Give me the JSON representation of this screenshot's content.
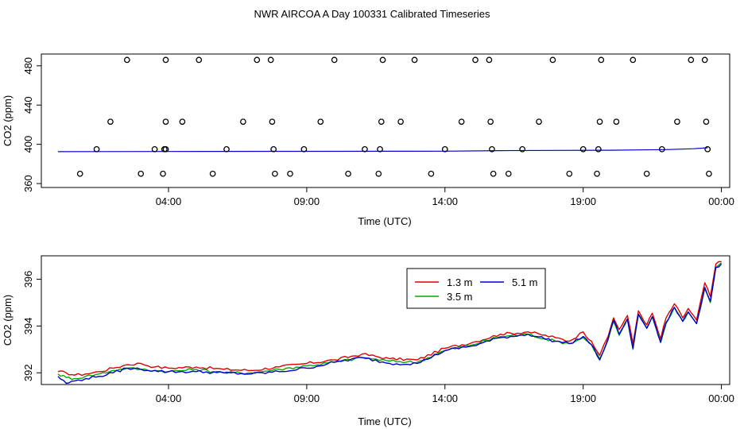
{
  "title": "NWR AIRCOA A  Day 100331  Calibrated Timeseries",
  "chart_data": [
    {
      "type": "scatter",
      "xlabel": "Time (UTC)",
      "ylabel": "CO2 (ppm)",
      "x_ticks": [
        "04:00",
        "09:00",
        "14:00",
        "19:00",
        "00:00"
      ],
      "x_tick_hours": [
        4,
        9,
        14,
        19,
        24
      ],
      "xlim_hours": [
        -0.6,
        24.3
      ],
      "y_ticks": [
        360,
        400,
        440,
        480
      ],
      "ylim": [
        356,
        492
      ],
      "points": [
        {
          "h": 0.8,
          "v": 370
        },
        {
          "h": 1.4,
          "v": 395
        },
        {
          "h": 1.9,
          "v": 423
        },
        {
          "h": 2.5,
          "v": 486
        },
        {
          "h": 3.0,
          "v": 370
        },
        {
          "h": 3.5,
          "v": 395
        },
        {
          "h": 3.8,
          "v": 370
        },
        {
          "h": 3.85,
          "v": 395
        },
        {
          "h": 3.9,
          "v": 395
        },
        {
          "h": 3.9,
          "v": 423
        },
        {
          "h": 3.9,
          "v": 486
        },
        {
          "h": 4.5,
          "v": 423
        },
        {
          "h": 5.1,
          "v": 486
        },
        {
          "h": 5.6,
          "v": 370
        },
        {
          "h": 6.1,
          "v": 395
        },
        {
          "h": 6.7,
          "v": 423
        },
        {
          "h": 7.2,
          "v": 486
        },
        {
          "h": 7.7,
          "v": 486
        },
        {
          "h": 7.75,
          "v": 423
        },
        {
          "h": 7.8,
          "v": 395
        },
        {
          "h": 7.85,
          "v": 370
        },
        {
          "h": 8.4,
          "v": 370
        },
        {
          "h": 8.9,
          "v": 395
        },
        {
          "h": 9.5,
          "v": 423
        },
        {
          "h": 10.0,
          "v": 486
        },
        {
          "h": 10.5,
          "v": 370
        },
        {
          "h": 11.1,
          "v": 395
        },
        {
          "h": 11.6,
          "v": 370
        },
        {
          "h": 11.65,
          "v": 395
        },
        {
          "h": 11.7,
          "v": 423
        },
        {
          "h": 11.75,
          "v": 486
        },
        {
          "h": 12.4,
          "v": 423
        },
        {
          "h": 12.9,
          "v": 486
        },
        {
          "h": 13.5,
          "v": 370
        },
        {
          "h": 14.0,
          "v": 395
        },
        {
          "h": 14.6,
          "v": 423
        },
        {
          "h": 15.1,
          "v": 486
        },
        {
          "h": 15.6,
          "v": 486
        },
        {
          "h": 15.65,
          "v": 423
        },
        {
          "h": 15.7,
          "v": 395
        },
        {
          "h": 15.75,
          "v": 370
        },
        {
          "h": 16.3,
          "v": 370
        },
        {
          "h": 16.8,
          "v": 395
        },
        {
          "h": 17.4,
          "v": 423
        },
        {
          "h": 17.9,
          "v": 486
        },
        {
          "h": 18.5,
          "v": 370
        },
        {
          "h": 19.0,
          "v": 395
        },
        {
          "h": 19.5,
          "v": 370
        },
        {
          "h": 19.55,
          "v": 395
        },
        {
          "h": 19.6,
          "v": 423
        },
        {
          "h": 19.65,
          "v": 486
        },
        {
          "h": 20.2,
          "v": 423
        },
        {
          "h": 20.8,
          "v": 486
        },
        {
          "h": 21.3,
          "v": 370
        },
        {
          "h": 21.85,
          "v": 395
        },
        {
          "h": 22.4,
          "v": 423
        },
        {
          "h": 22.9,
          "v": 486
        },
        {
          "h": 23.4,
          "v": 486
        },
        {
          "h": 23.45,
          "v": 423
        },
        {
          "h": 23.5,
          "v": 395
        },
        {
          "h": 23.55,
          "v": 370
        }
      ],
      "baseline": {
        "color": "#0000cc",
        "points": [
          [
            0,
            392.5
          ],
          [
            4,
            392.7
          ],
          [
            8,
            392.8
          ],
          [
            12,
            392.9
          ],
          [
            14,
            393.0
          ],
          [
            16,
            393.6
          ],
          [
            18,
            393.8
          ],
          [
            20,
            394.0
          ],
          [
            21,
            394.3
          ],
          [
            22,
            394.6
          ],
          [
            23,
            395.5
          ],
          [
            23.5,
            396.5
          ]
        ]
      }
    },
    {
      "type": "line",
      "xlabel": "Time (UTC)",
      "ylabel": "CO2 (ppm)",
      "x_ticks": [
        "04:00",
        "09:00",
        "14:00",
        "19:00",
        "00:00"
      ],
      "x_tick_hours": [
        4,
        9,
        14,
        19,
        24
      ],
      "xlim_hours": [
        -0.6,
        24.3
      ],
      "y_ticks": [
        "392",
        "394",
        "396"
      ],
      "y_tick_values": [
        392,
        394,
        396
      ],
      "ylim": [
        391.5,
        397.0
      ],
      "legend": {
        "placement": "top-right"
      },
      "series": [
        {
          "name": "1.3 m",
          "color": "#e00000",
          "offset": 0.05,
          "points": [
            [
              0,
              392.0
            ],
            [
              0.3,
              391.95
            ],
            [
              0.6,
              391.85
            ],
            [
              1.0,
              391.9
            ],
            [
              1.5,
              392.0
            ],
            [
              2.0,
              392.15
            ],
            [
              2.5,
              392.3
            ],
            [
              3.0,
              392.35
            ],
            [
              3.5,
              392.2
            ],
            [
              4.0,
              392.15
            ],
            [
              5.0,
              392.2
            ],
            [
              6.0,
              392.1
            ],
            [
              7.0,
              392.05
            ],
            [
              8.0,
              392.2
            ],
            [
              9.0,
              392.35
            ],
            [
              10.0,
              392.5
            ],
            [
              11.0,
              392.75
            ],
            [
              12.0,
              392.55
            ],
            [
              13.0,
              392.5
            ],
            [
              14.0,
              393.0
            ],
            [
              15.0,
              393.25
            ],
            [
              16.0,
              393.6
            ],
            [
              17.0,
              393.7
            ],
            [
              18.0,
              393.45
            ],
            [
              18.5,
              393.3
            ],
            [
              19.0,
              393.7
            ],
            [
              19.3,
              393.3
            ],
            [
              19.6,
              392.7
            ],
            [
              19.9,
              393.5
            ],
            [
              20.1,
              394.3
            ],
            [
              20.3,
              393.8
            ],
            [
              20.6,
              394.4
            ],
            [
              20.8,
              393.2
            ],
            [
              21.0,
              394.6
            ],
            [
              21.3,
              394.0
            ],
            [
              21.5,
              394.5
            ],
            [
              21.8,
              393.4
            ],
            [
              22.0,
              394.3
            ],
            [
              22.3,
              394.9
            ],
            [
              22.6,
              394.3
            ],
            [
              22.8,
              394.7
            ],
            [
              23.1,
              394.2
            ],
            [
              23.4,
              395.8
            ],
            [
              23.6,
              395.2
            ],
            [
              23.8,
              396.6
            ],
            [
              24.0,
              396.7
            ]
          ]
        },
        {
          "name": "3.5 m",
          "color": "#00aa00",
          "offset": 0.0,
          "points": [
            [
              0,
              391.95
            ],
            [
              0.3,
              391.8
            ],
            [
              0.6,
              391.75
            ],
            [
              1.0,
              391.85
            ],
            [
              1.5,
              391.95
            ],
            [
              2.0,
              392.1
            ],
            [
              2.5,
              392.2
            ],
            [
              3.0,
              392.15
            ],
            [
              3.5,
              392.1
            ],
            [
              4.0,
              392.05
            ],
            [
              5.0,
              392.15
            ],
            [
              6.0,
              392.0
            ],
            [
              7.0,
              392.0
            ],
            [
              8.0,
              392.15
            ],
            [
              9.0,
              392.3
            ],
            [
              10.0,
              392.45
            ],
            [
              11.0,
              392.65
            ],
            [
              12.0,
              392.5
            ],
            [
              13.0,
              392.45
            ],
            [
              14.0,
              392.95
            ],
            [
              15.0,
              393.2
            ],
            [
              16.0,
              393.55
            ],
            [
              17.0,
              393.65
            ],
            [
              18.0,
              393.35
            ],
            [
              18.5,
              393.25
            ],
            [
              19.0,
              393.5
            ],
            [
              19.3,
              393.2
            ],
            [
              19.6,
              392.6
            ],
            [
              19.9,
              393.4
            ],
            [
              20.1,
              394.2
            ],
            [
              20.3,
              393.6
            ],
            [
              20.6,
              394.3
            ],
            [
              20.8,
              393.0
            ],
            [
              21.0,
              394.5
            ],
            [
              21.3,
              393.9
            ],
            [
              21.5,
              394.4
            ],
            [
              21.8,
              393.3
            ],
            [
              22.0,
              394.1
            ],
            [
              22.3,
              394.8
            ],
            [
              22.6,
              394.2
            ],
            [
              22.8,
              394.6
            ],
            [
              23.1,
              394.1
            ],
            [
              23.4,
              395.6
            ],
            [
              23.6,
              395.0
            ],
            [
              23.8,
              396.5
            ],
            [
              24.0,
              396.7
            ]
          ]
        },
        {
          "name": "5.1 m",
          "color": "#0000cc",
          "offset": -0.05,
          "points": [
            [
              0,
              391.9
            ],
            [
              0.3,
              391.6
            ],
            [
              0.6,
              391.7
            ],
            [
              1.0,
              391.8
            ],
            [
              1.5,
              391.9
            ],
            [
              2.0,
              392.05
            ],
            [
              2.5,
              392.25
            ],
            [
              3.0,
              392.2
            ],
            [
              3.5,
              392.15
            ],
            [
              4.0,
              392.1
            ],
            [
              5.0,
              392.1
            ],
            [
              6.0,
              392.05
            ],
            [
              7.0,
              392.0
            ],
            [
              8.0,
              392.1
            ],
            [
              9.0,
              392.25
            ],
            [
              10.0,
              392.5
            ],
            [
              11.0,
              392.7
            ],
            [
              12.0,
              392.45
            ],
            [
              13.0,
              392.45
            ],
            [
              14.0,
              393.0
            ],
            [
              15.0,
              393.2
            ],
            [
              16.0,
              393.55
            ],
            [
              17.0,
              393.7
            ],
            [
              18.0,
              393.4
            ],
            [
              18.5,
              393.3
            ],
            [
              19.0,
              393.6
            ],
            [
              19.3,
              393.25
            ],
            [
              19.6,
              392.6
            ],
            [
              19.9,
              393.5
            ],
            [
              20.1,
              394.3
            ],
            [
              20.3,
              393.7
            ],
            [
              20.6,
              394.35
            ],
            [
              20.8,
              393.1
            ],
            [
              21.0,
              394.55
            ],
            [
              21.3,
              393.95
            ],
            [
              21.5,
              394.45
            ],
            [
              21.8,
              393.35
            ],
            [
              22.0,
              394.2
            ],
            [
              22.3,
              394.85
            ],
            [
              22.6,
              394.25
            ],
            [
              22.8,
              394.65
            ],
            [
              23.1,
              394.15
            ],
            [
              23.4,
              395.7
            ],
            [
              23.6,
              395.1
            ],
            [
              23.8,
              396.55
            ],
            [
              24.0,
              396.7
            ]
          ]
        }
      ]
    }
  ]
}
